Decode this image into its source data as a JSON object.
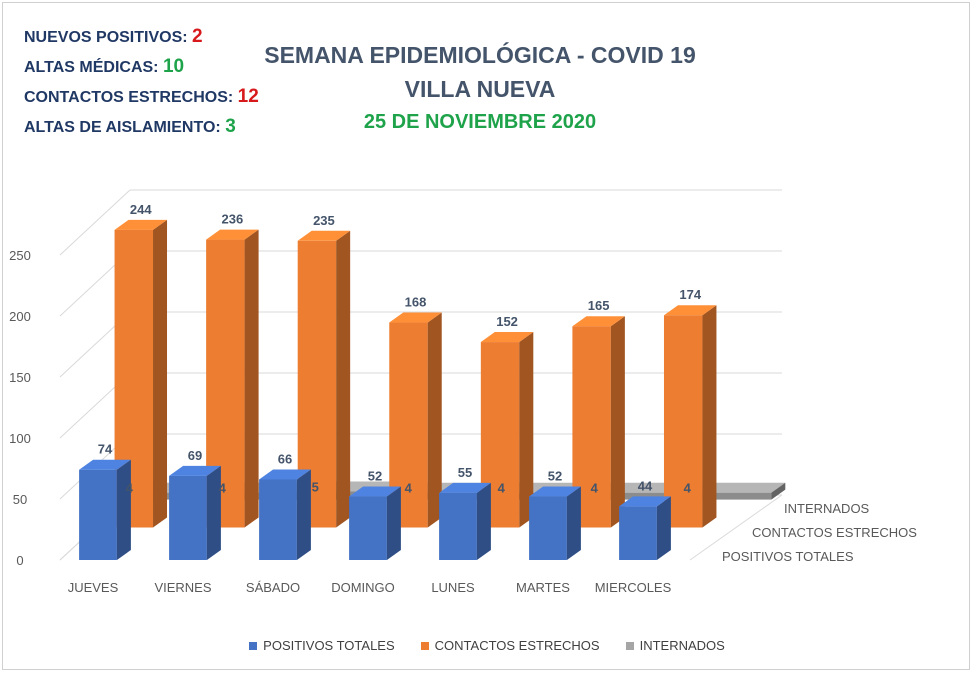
{
  "stats": [
    {
      "label": "NUEVOS POSITIVOS:",
      "value": "2",
      "color": "#D7191C"
    },
    {
      "label": "ALTAS MÉDICAS:",
      "value": "10",
      "color": "#1EA34B"
    },
    {
      "label": "CONTACTOS ESTRECHOS:",
      "value": "12",
      "color": "#D7191C"
    },
    {
      "label": "ALTAS DE AISLAMIENTO:",
      "value": "3",
      "color": "#1EA34B"
    }
  ],
  "header": {
    "title": "SEMANA EPIDEMIOLÓGICA - COVID 19",
    "subtitle": "VILLA NUEVA",
    "date": "25 DE NOVIEMBRE 2020"
  },
  "chart_data": {
    "type": "bar",
    "style": "3d-clustered-depth",
    "categories": [
      "JUEVES",
      "VIERNES",
      "SÁBADO",
      "DOMINGO",
      "LUNES",
      "MARTES",
      "MIERCOLES"
    ],
    "series": [
      {
        "name": "POSITIVOS TOTALES",
        "values": [
          74,
          69,
          66,
          52,
          55,
          52,
          44
        ],
        "color": "#4472C4"
      },
      {
        "name": "CONTACTOS ESTRECHOS",
        "values": [
          244,
          236,
          235,
          168,
          152,
          165,
          174
        ],
        "color": "#ED7D31"
      },
      {
        "name": "INTERNADOS",
        "values": [
          4,
          4,
          5,
          4,
          4,
          4,
          4
        ],
        "color": "#A5A5A5"
      }
    ],
    "ylim": [
      0,
      250
    ],
    "yticks": [
      0,
      50,
      100,
      150,
      200,
      250
    ],
    "depth_labels": [
      "POSITIVOS TOTALES",
      "CONTACTOS ESTRECHOS",
      "INTERNADOS"
    ],
    "grid": true,
    "legend_position": "bottom"
  }
}
